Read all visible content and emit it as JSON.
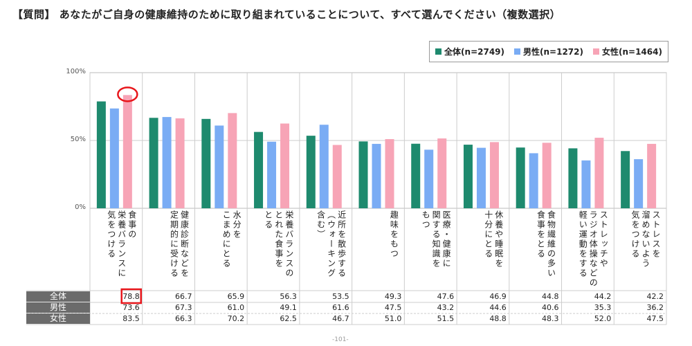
{
  "title": "【質問】 あなたがご自身の健康維持のために取り組まれていることについて、すべて選んでください（複数選択）",
  "page_number": "-101-",
  "chart_data": {
    "type": "bar",
    "title": "【質問】 あなたがご自身の健康維持のために取り組まれていることについて、すべて選んでください（複数選択）",
    "ylim": [
      0,
      100
    ],
    "yticks": [
      "0%",
      "50%",
      "100%"
    ],
    "legend_position": "top-right",
    "categories": [
      "食事の\n栄養バランスに\n気をつける",
      "健康診断などを\n定期的に受ける",
      "水分を\nこまめにとる",
      "栄養バランスの\nとれた食事を\nとる",
      "近所を散歩する\n（ウォーキング\n含む）",
      "趣味をもつ",
      "医療・健康に\n関する知識を\nもつ",
      "休養や睡眠を\n十分にとる",
      "食物繊維の多い\n食事をとる",
      "ストレッチや\nラジオ体操などの\n軽い運動をする",
      "ストレスを\n溜めないよう\n気をつける"
    ],
    "series": [
      {
        "name": "全体",
        "legend": "全体(n=2749)",
        "color": "#1e8a6e",
        "values": [
          78.8,
          66.7,
          65.9,
          56.3,
          53.5,
          49.3,
          47.6,
          46.9,
          44.8,
          44.2,
          42.2
        ]
      },
      {
        "name": "男性",
        "legend": "男性(n=1272)",
        "color": "#7aacf4",
        "values": [
          73.6,
          67.3,
          61.0,
          49.1,
          61.6,
          47.5,
          43.2,
          44.6,
          40.6,
          35.3,
          36.2
        ]
      },
      {
        "name": "女性",
        "legend": "女性(n=1464)",
        "color": "#f7a4b6",
        "values": [
          83.5,
          66.3,
          70.2,
          62.5,
          46.7,
          51.0,
          51.5,
          48.8,
          48.3,
          52.0,
          47.5
        ]
      }
    ],
    "highlight_color": "#e8161b"
  }
}
